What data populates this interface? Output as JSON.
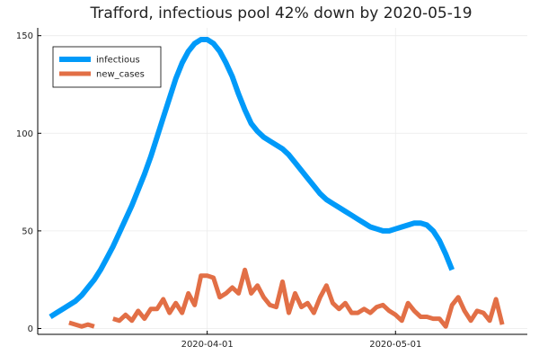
{
  "chart_data": {
    "type": "line",
    "title": "Trafford, infectious pool 42% down by 2020-05-19",
    "xlabel": "",
    "ylabel": "",
    "x_start": "2020-03-07",
    "x_end": "2020-05-19",
    "xlim": [
      "2020-03-05",
      "2020-05-22"
    ],
    "ylim": [
      -3,
      154
    ],
    "yticks": [
      0,
      50,
      100,
      150
    ],
    "xticks": [
      "2020-04-01",
      "2020-05-01"
    ],
    "grid": true,
    "legend_position": "top-left",
    "series": [
      {
        "name": "infectious",
        "color": "#009af9",
        "values": [
          6,
          8,
          10,
          12,
          14,
          17,
          21,
          25,
          30,
          36,
          42,
          49,
          56,
          63,
          71,
          79,
          88,
          98,
          108,
          118,
          128,
          136,
          142,
          146,
          148,
          148,
          146,
          142,
          136,
          129,
          120,
          112,
          105,
          101,
          98,
          96,
          94,
          92,
          89,
          85,
          81,
          77,
          73,
          69,
          66,
          64,
          62,
          60,
          58,
          56,
          54,
          52,
          51,
          50,
          50,
          51,
          52,
          53,
          54,
          54,
          53,
          50,
          45,
          38,
          30
        ]
      },
      {
        "name": "new_cases",
        "color": "#e26f46",
        "values": [
          null,
          null,
          null,
          3,
          2,
          1,
          2,
          1,
          null,
          null,
          5,
          4,
          7,
          4,
          9,
          5,
          10,
          10,
          15,
          8,
          13,
          8,
          18,
          12,
          27,
          27,
          26,
          16,
          18,
          21,
          18,
          30,
          18,
          22,
          16,
          12,
          11,
          24,
          8,
          18,
          11,
          13,
          8,
          16,
          22,
          13,
          10,
          13,
          8,
          8,
          10,
          8,
          11,
          12,
          9,
          7,
          4,
          13,
          9,
          6,
          6,
          5,
          5,
          1,
          12,
          16,
          9,
          4,
          9,
          8,
          4,
          15,
          2
        ]
      }
    ]
  }
}
